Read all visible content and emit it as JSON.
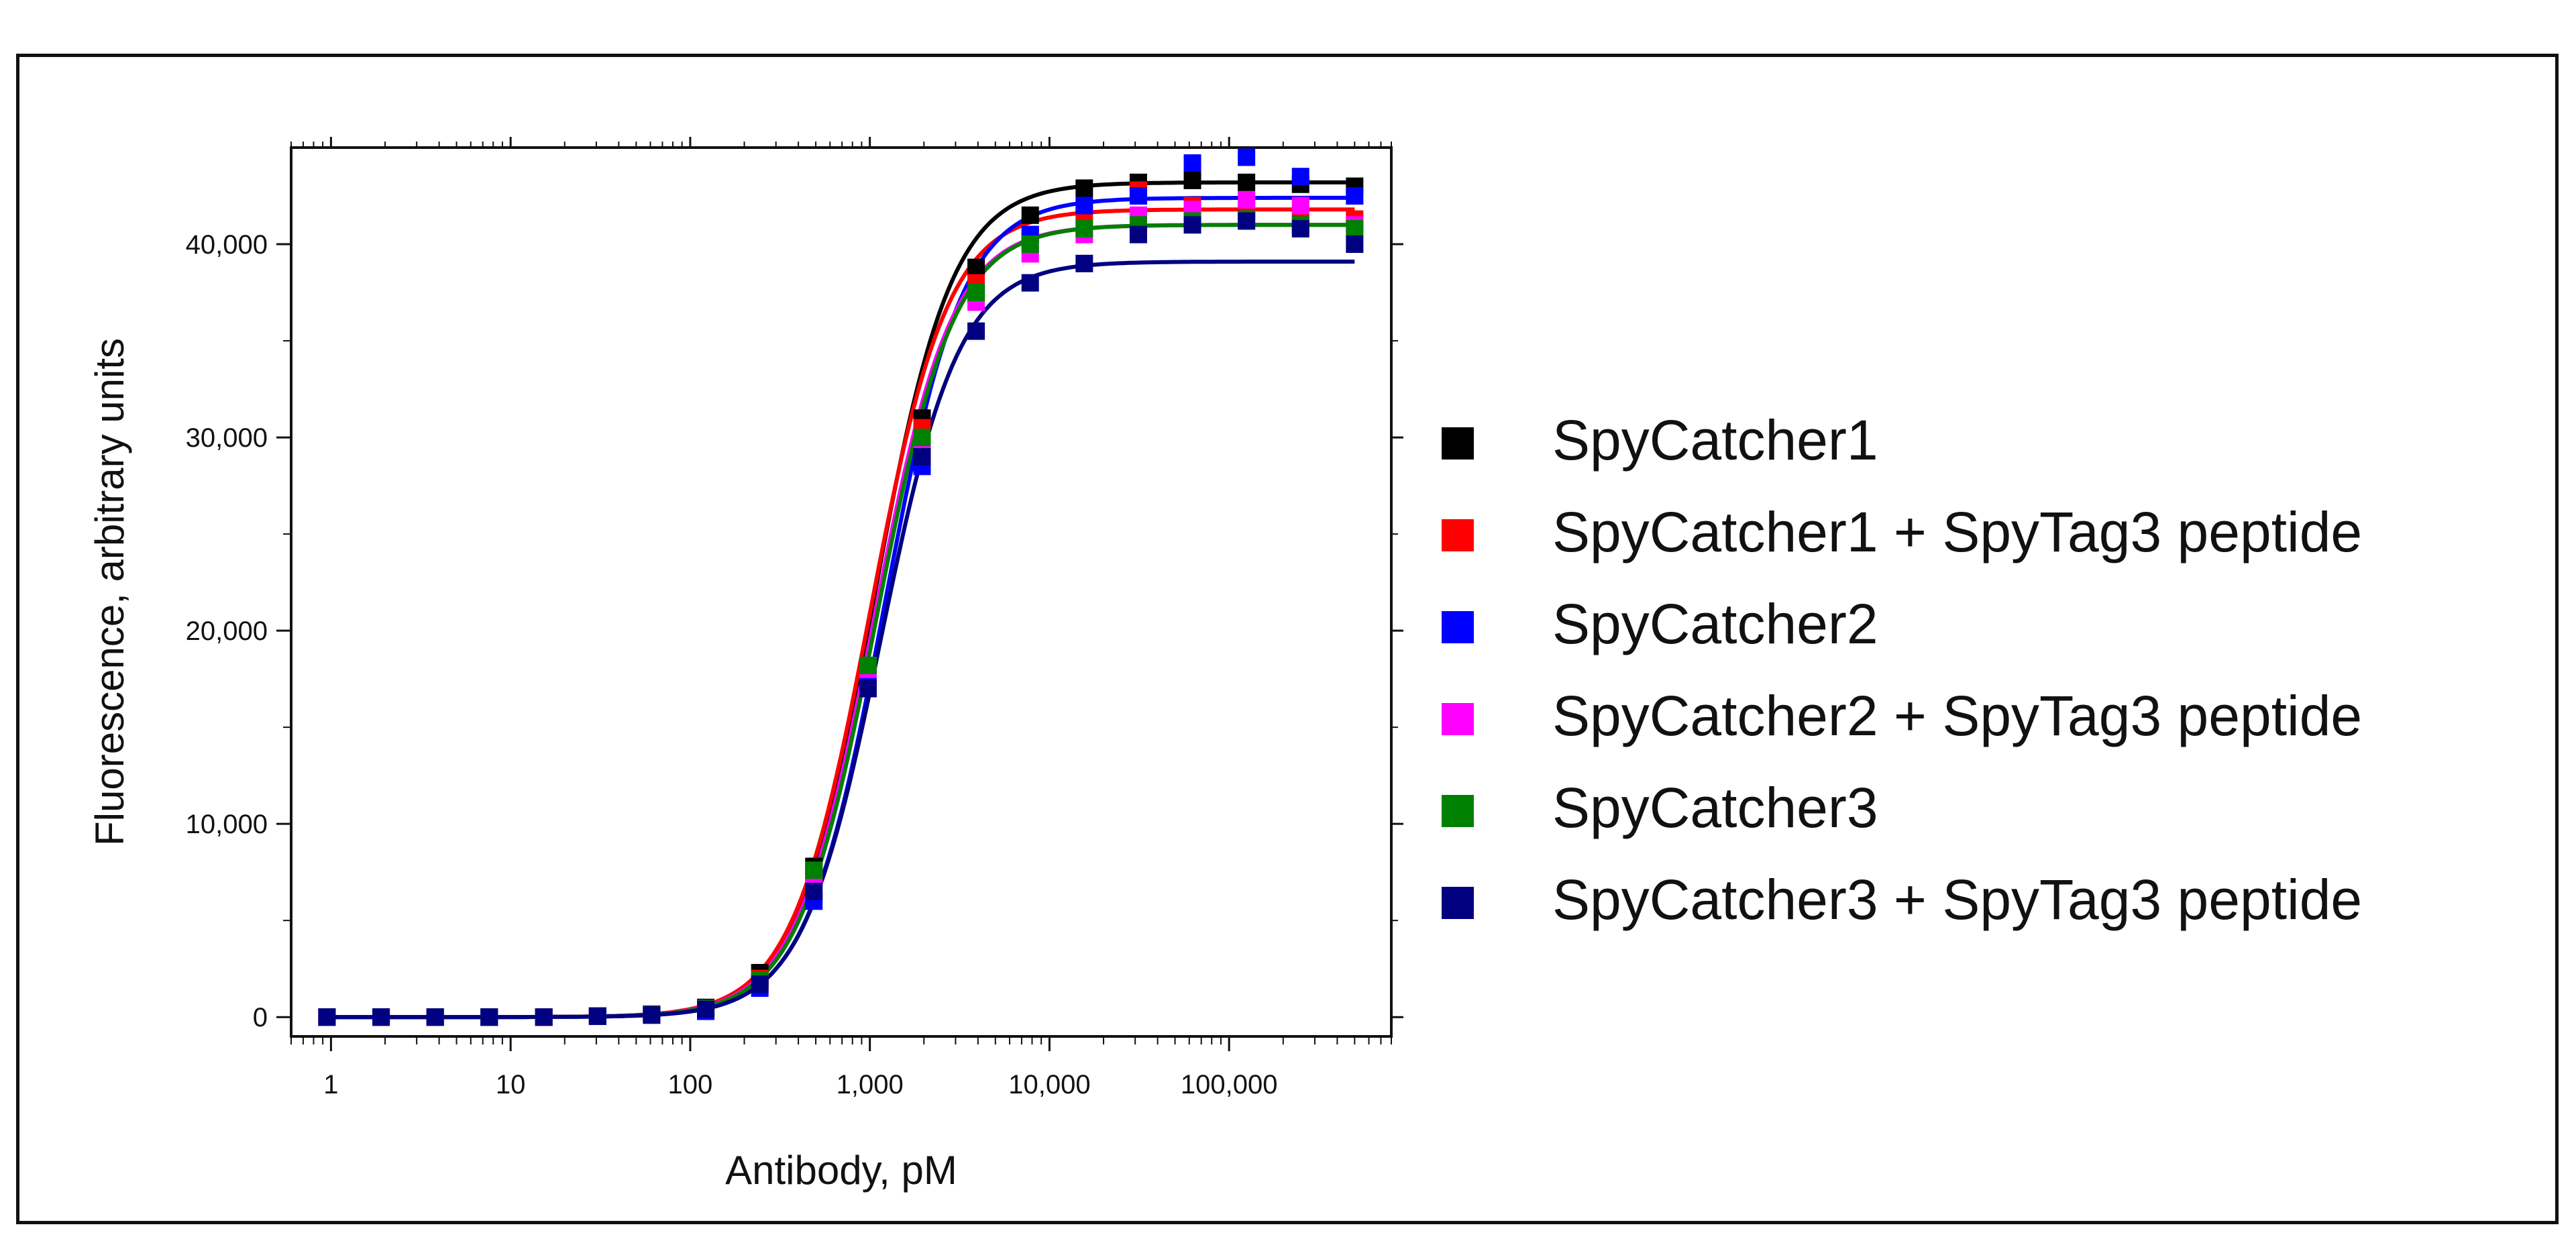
{
  "chart_data": {
    "type": "scatter",
    "title": "",
    "xlabel": "Antibody, pM",
    "ylabel": "Fluorescence, arbitrary units",
    "x_scale": "log",
    "xlim": [
      0.6,
      800000
    ],
    "ylim": [
      -1000,
      45000
    ],
    "x_ticks": [
      1,
      10,
      100,
      1000,
      10000,
      100000
    ],
    "x_tick_labels": [
      "1",
      "10",
      "100",
      "1,000",
      "10,000",
      "100,000"
    ],
    "y_ticks": [
      0,
      10000,
      20000,
      30000,
      40000
    ],
    "y_tick_labels": [
      "0",
      "10,000",
      "20,000",
      "30,000",
      "40,000"
    ],
    "grid": false,
    "legend_position": "right",
    "x": [
      0.95,
      1.9,
      3.8,
      7.6,
      15.3,
      30.5,
      61,
      122,
      244,
      488,
      977,
      1953,
      3906,
      7813,
      15625,
      31250,
      62500,
      125000,
      250000,
      500000
    ],
    "series": [
      {
        "name": "SpyCatcher1",
        "color": "#000000",
        "fit": {
          "top": 43200,
          "ec50": 1050,
          "hill": 2.0
        },
        "values": [
          0,
          0,
          0,
          0,
          0,
          50,
          150,
          500,
          2300,
          7800,
          18000,
          31000,
          38800,
          41500,
          42900,
          43200,
          43300,
          43200,
          43100,
          43000
        ]
      },
      {
        "name": "SpyCatcher1 + SpyTag3 peptide",
        "color": "#ff0000",
        "fit": {
          "top": 41800,
          "ec50": 1000,
          "hill": 2.0
        },
        "values": [
          0,
          0,
          0,
          0,
          0,
          50,
          150,
          450,
          2000,
          7500,
          18000,
          30500,
          38000,
          40500,
          41500,
          42800,
          42000,
          41800,
          41500,
          41300
        ]
      },
      {
        "name": "SpyCatcher2",
        "color": "#0000ff",
        "fit": {
          "top": 42400,
          "ec50": 1200,
          "hill": 2.0
        },
        "values": [
          0,
          0,
          0,
          0,
          0,
          40,
          100,
          300,
          1500,
          6000,
          17500,
          28500,
          37500,
          40500,
          42000,
          42500,
          44200,
          44500,
          43500,
          42500
        ]
      },
      {
        "name": "SpyCatcher2 + SpyTag3 peptide",
        "color": "#ff00ff",
        "fit": {
          "top": 41000,
          "ec50": 1050,
          "hill": 2.0
        },
        "values": [
          0,
          0,
          0,
          0,
          0,
          50,
          140,
          400,
          1800,
          7200,
          18000,
          29500,
          37000,
          39500,
          40500,
          41500,
          41800,
          42300,
          42000,
          41000
        ]
      },
      {
        "name": "SpyCatcher3",
        "color": "#008000",
        "fit": {
          "top": 41000,
          "ec50": 1080,
          "hill": 2.0
        },
        "values": [
          0,
          0,
          0,
          0,
          0,
          50,
          150,
          450,
          1900,
          7600,
          18200,
          30000,
          37500,
          40000,
          40800,
          41000,
          41200,
          41300,
          41000,
          40800
        ]
      },
      {
        "name": "SpyCatcher3 + SpyTag3 peptide",
        "color": "#000080",
        "fit": {
          "top": 39100,
          "ec50": 1150,
          "hill": 2.0
        },
        "values": [
          0,
          0,
          0,
          0,
          0,
          50,
          120,
          400,
          1700,
          6500,
          17000,
          29000,
          35500,
          38000,
          39000,
          40500,
          41000,
          41200,
          40800,
          40000
        ]
      }
    ]
  }
}
